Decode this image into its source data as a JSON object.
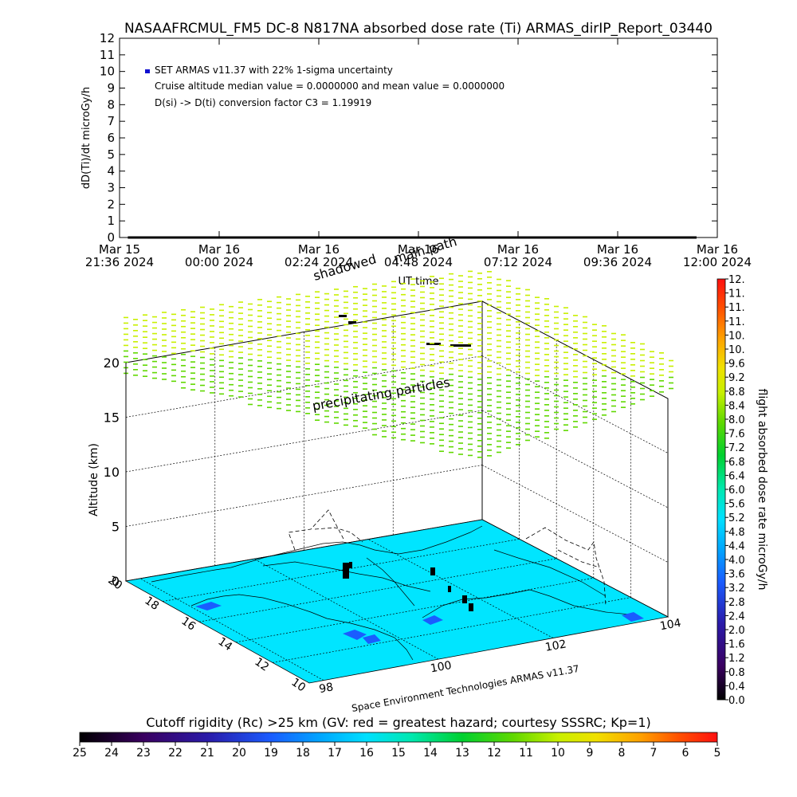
{
  "title": "NASAAFRCMUL_FM5 DC-8    N817NA absorbed dose rate (Ti) ARMAS_dirIP_Report_03440",
  "chart_data": [
    {
      "type": "line",
      "ylabel": "dD(Ti)/dt microGy/h",
      "xlabel": "UT time",
      "yticks": [
        "0",
        "1",
        "2",
        "3",
        "4",
        "5",
        "6",
        "7",
        "8",
        "9",
        "10",
        "11",
        "12"
      ],
      "ylim": [
        0,
        12
      ],
      "xticks": [
        {
          "l1": "Mar 15",
          "l2": "21:36 2024"
        },
        {
          "l1": "Mar 16",
          "l2": "00:00 2024"
        },
        {
          "l1": "Mar 16",
          "l2": "02:24 2024"
        },
        {
          "l1": "Mar 16",
          "l2": "04:48 2024"
        },
        {
          "l1": "Mar 16",
          "l2": "07:12 2024"
        },
        {
          "l1": "Mar 16",
          "l2": "09:36 2024"
        },
        {
          "l1": "Mar 16",
          "l2": "12:00 2024"
        }
      ],
      "x_start_hours": 0.2,
      "x_end_hours": 13.9,
      "x_range_hours": [
        0,
        14.4
      ],
      "series": [
        {
          "values_constant": 0
        }
      ],
      "annotations": [
        "SET ARMAS v11.37 with 22% 1-sigma uncertainty",
        "Cruise altitude median value = 0.0000000 and mean value = 0.0000000",
        "D(si) -> D(ti) conversion factor C3 = 1.19919"
      ],
      "legend_color": "#1010d0"
    },
    {
      "type": "scatter",
      "ylabel": "Altitude (km)",
      "zticks": [
        "0",
        "5",
        "10",
        "15",
        "20"
      ],
      "zlim": [
        0,
        20
      ],
      "lat_ticks": [
        "10",
        "12",
        "14",
        "16",
        "18",
        "20"
      ],
      "lon_ticks": [
        "98",
        "100",
        "102",
        "104"
      ],
      "labels": {
        "shadowed": "shadowed",
        "main_path": "main path",
        "precip": "precipitating particles",
        "credit": "Space Environment Technologies ARMAS v11.37"
      },
      "ocean_color": "#00e5ff"
    },
    {
      "type": "heatmap",
      "ylabel": "flight absorbed dose rate microGy/h",
      "ticks": [
        "0.0",
        "0.4",
        "0.8",
        "1.2",
        "1.6",
        "2.0",
        "2.4",
        "2.8",
        "3.2",
        "3.6",
        "4.0",
        "4.4",
        "4.8",
        "5.2",
        "5.6",
        "6.0",
        "6.4",
        "6.8",
        "7.2",
        "7.6",
        "8.0",
        "8.4",
        "8.8",
        "9.2",
        "9.6",
        "10.",
        "10.",
        "11.",
        "11.",
        "11.",
        "12."
      ]
    },
    {
      "type": "heatmap",
      "title": "Cutoff rigidity (Rc) >25 km (GV: red = greatest hazard; courtesy SSSRC; Kp=1)",
      "ticks": [
        "25",
        "24",
        "23",
        "22",
        "21",
        "20",
        "19",
        "18",
        "17",
        "16",
        "15",
        "14",
        "13",
        "12",
        "11",
        "10",
        "9",
        "8",
        "7",
        "6",
        "5"
      ]
    }
  ]
}
